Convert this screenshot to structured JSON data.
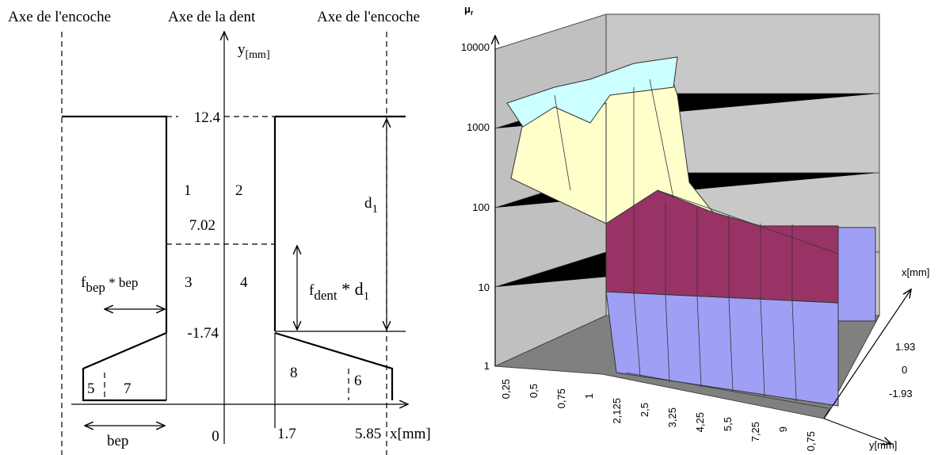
{
  "left": {
    "axes": {
      "notch_left": "Axe de l'encoche",
      "tooth": "Axe de la dent",
      "notch_right": "Axe de l'encoche"
    },
    "y_axis": {
      "name": "y",
      "unit": "[mm]"
    },
    "x_axis": "x[mm]",
    "y_labels": [
      "12.4",
      "7.02",
      "-1.74"
    ],
    "x_labels": [
      "0",
      "1.7",
      "5.85"
    ],
    "regions": [
      "1",
      "2",
      "3",
      "4",
      "5",
      "6",
      "7",
      "8"
    ],
    "d1": {
      "base": "d",
      "sub": "1"
    },
    "f_bep": {
      "base": "f",
      "sub": "bep",
      "rest": " * bep"
    },
    "f_dent": {
      "base": "f",
      "sub": "dent",
      "rest": " * d",
      "sub2": "1"
    },
    "bep": "bep"
  },
  "right": {
    "y_axis": {
      "base": "μ",
      "sub": "r"
    },
    "y_ticks": [
      "10000",
      "1000",
      "100",
      "10",
      "1"
    ],
    "x_labels": [
      "0,25",
      "0,5",
      "0,75",
      "1",
      "2,125",
      "2,5",
      "3,25",
      "4,25",
      "5,5",
      "7,25",
      "9",
      "0,75"
    ],
    "x_axis": "y[mm]",
    "depth_axis": "x[mm]",
    "depth_labels": [
      "1.93",
      "0",
      "-1.93"
    ]
  }
}
